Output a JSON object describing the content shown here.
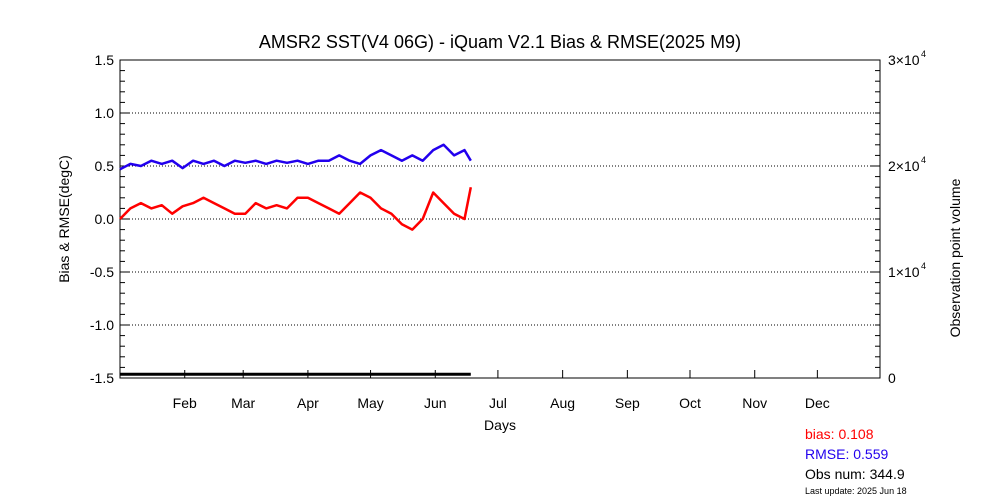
{
  "chart_data": {
    "type": "line",
    "title": "AMSR2 SST(V4 06G) - iQuam V2.1 Bias & RMSE(2025 M9)",
    "xlabel": "Days",
    "ylabel": "Bias & RMSE(degC)",
    "y2label": "Observation point volume",
    "ylim": [
      -1.5,
      1.5
    ],
    "y2lim": [
      0,
      30000
    ],
    "xlim": [
      1,
      365
    ],
    "yticks": [
      "1.5",
      "1.0",
      "0.5",
      "0.0",
      "-0.5",
      "-1.0",
      "-1.5"
    ],
    "ytick_values": [
      1.5,
      1.0,
      0.5,
      0.0,
      -0.5,
      -1.0,
      -1.5
    ],
    "y2ticks": [
      {
        "value": 30000,
        "mantissa": "3×10",
        "exp": "4"
      },
      {
        "value": 20000,
        "mantissa": "2×10",
        "exp": "4"
      },
      {
        "value": 10000,
        "mantissa": "1×10",
        "exp": "4"
      },
      {
        "value": 0,
        "mantissa": "0",
        "exp": ""
      }
    ],
    "xticks": [
      {
        "label": "Feb",
        "day": 32
      },
      {
        "label": "Mar",
        "day": 60
      },
      {
        "label": "Apr",
        "day": 91
      },
      {
        "label": "May",
        "day": 121
      },
      {
        "label": "Jun",
        "day": 152
      },
      {
        "label": "Jul",
        "day": 182
      },
      {
        "label": "Aug",
        "day": 213
      },
      {
        "label": "Sep",
        "day": 244
      },
      {
        "label": "Oct",
        "day": 274
      },
      {
        "label": "Nov",
        "day": 305
      },
      {
        "label": "Dec",
        "day": 335
      }
    ],
    "gridlines_y": [
      1.0,
      0.5,
      0.0,
      -0.5,
      -1.0
    ],
    "grid": "dotted horizontal",
    "series": [
      {
        "color": "#ff0000",
        "x": [
          1,
          6,
          11,
          16,
          21,
          26,
          31,
          36,
          41,
          46,
          51,
          56,
          61,
          66,
          71,
          76,
          81,
          86,
          91,
          96,
          101,
          106,
          111,
          116,
          121,
          126,
          131,
          136,
          141,
          146,
          151,
          156,
          161,
          166,
          169
        ],
        "values": [
          0.0,
          0.1,
          0.15,
          0.1,
          0.13,
          0.05,
          0.12,
          0.15,
          0.2,
          0.15,
          0.1,
          0.05,
          0.05,
          0.15,
          0.1,
          0.13,
          0.1,
          0.2,
          0.2,
          0.15,
          0.1,
          0.05,
          0.15,
          0.25,
          0.2,
          0.1,
          0.05,
          -0.05,
          -0.1,
          0.0,
          0.25,
          0.15,
          0.05,
          0.0,
          0.3
        ]
      },
      {
        "color": "#2200ee",
        "x": [
          1,
          6,
          11,
          16,
          21,
          26,
          31,
          36,
          41,
          46,
          51,
          56,
          61,
          66,
          71,
          76,
          81,
          86,
          91,
          96,
          101,
          106,
          111,
          116,
          121,
          126,
          131,
          136,
          141,
          146,
          151,
          156,
          161,
          166,
          169
        ],
        "values": [
          0.47,
          0.52,
          0.5,
          0.55,
          0.52,
          0.55,
          0.48,
          0.55,
          0.52,
          0.55,
          0.5,
          0.55,
          0.53,
          0.55,
          0.52,
          0.55,
          0.53,
          0.55,
          0.52,
          0.55,
          0.55,
          0.6,
          0.55,
          0.52,
          0.6,
          0.65,
          0.6,
          0.55,
          0.6,
          0.55,
          0.65,
          0.7,
          0.6,
          0.65,
          0.55
        ]
      },
      {
        "color": "#000000",
        "axis": "right",
        "x": [
          1,
          169
        ],
        "values": [
          344.9,
          344.9
        ]
      }
    ],
    "stats": {
      "bias": "bias: 0.108",
      "rmse": "RMSE: 0.559",
      "obs": "Obs num:  344.9",
      "updated": "Last update: 2025 Jun 18"
    }
  }
}
